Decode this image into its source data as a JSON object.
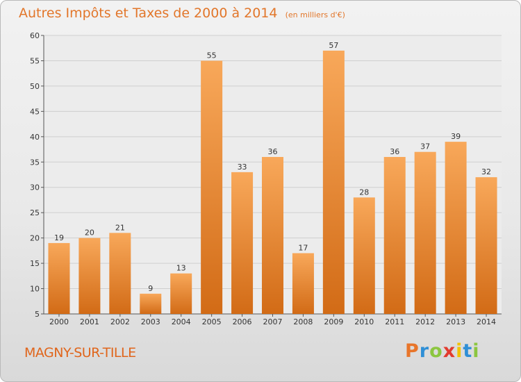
{
  "header": {
    "title": "Autres Impôts et Taxes de 2000 à 2014",
    "unit": "(en milliers d'€)"
  },
  "footer": {
    "city": "MAGNY-SUR-TILLE",
    "logo_letters": [
      "P",
      "r",
      "o",
      "x",
      "i",
      "t",
      "i"
    ],
    "logo_colors": [
      "#e8752a",
      "#2f8fd6",
      "#8cc63f",
      "#e23b2e",
      "#f2c300",
      "#2f8fd6",
      "#8cc63f"
    ]
  },
  "colors": {
    "bar_top": "#f8a85a",
    "bar_bottom": "#d26b16",
    "accent": "#e2762a"
  },
  "chart_data": {
    "type": "bar",
    "categories": [
      "2000",
      "2001",
      "2002",
      "2003",
      "2004",
      "2005",
      "2006",
      "2007",
      "2008",
      "2009",
      "2010",
      "2011",
      "2012",
      "2013",
      "2014"
    ],
    "values": [
      19,
      20,
      21,
      9,
      13,
      55,
      33,
      36,
      17,
      57,
      28,
      36,
      37,
      39,
      32
    ],
    "ylim": [
      5,
      60
    ],
    "yticks": [
      5,
      10,
      15,
      20,
      25,
      30,
      35,
      40,
      45,
      50,
      55,
      60
    ],
    "grid": true
  }
}
